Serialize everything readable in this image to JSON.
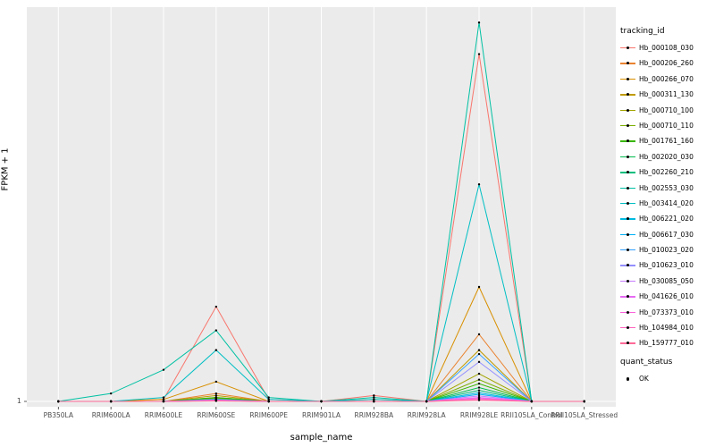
{
  "chart_data": {
    "type": "line",
    "title": "",
    "xlabel": "sample_name",
    "ylabel": "FPKM + 1",
    "ytick_labels": [
      "1"
    ],
    "ylim": [
      1,
      100
    ],
    "legend_title": "tracking_id",
    "legend_position": "right",
    "grid": "on",
    "panel_color": "#EBEBEB",
    "gridline_color": "#FFFFFF",
    "point_color": "#000000",
    "categories": [
      "PB350LA",
      "RRIM600LA",
      "RRIM600LE",
      "RRIM600SE",
      "RRIM600PE",
      "RRIM901LA",
      "RRIM928BA",
      "RRIM928LA",
      "RRIM928LE",
      "RRII105LA_Control",
      "RRII105LA_Stressed"
    ],
    "series": [
      {
        "name": "Hb_000108_030",
        "color": "#F8766D",
        "values": [
          1,
          1,
          1.5,
          25,
          1.5,
          1,
          2.5,
          1,
          89,
          1,
          1
        ]
      },
      {
        "name": "Hb_000206_260",
        "color": "#EA8331",
        "values": [
          1,
          1,
          1,
          3,
          1,
          1,
          1.5,
          1,
          18,
          1,
          1
        ]
      },
      {
        "name": "Hb_000266_070",
        "color": "#D89000",
        "values": [
          1,
          1,
          1.5,
          6,
          1,
          1,
          1,
          1,
          30,
          1,
          1
        ]
      },
      {
        "name": "Hb_000311_130",
        "color": "#C09B00",
        "values": [
          1,
          1,
          1,
          2.5,
          1,
          1,
          1,
          1,
          14,
          1,
          1
        ]
      },
      {
        "name": "Hb_000710_100",
        "color": "#A3A500",
        "values": [
          1,
          1,
          1,
          2,
          1,
          1,
          1,
          1,
          8,
          1,
          1
        ]
      },
      {
        "name": "Hb_000710_110",
        "color": "#7CAE00",
        "values": [
          1,
          1,
          1,
          1.8,
          1,
          1,
          1,
          1,
          6.5,
          1,
          1
        ]
      },
      {
        "name": "Hb_001761_160",
        "color": "#39B600",
        "values": [
          1,
          1,
          1,
          2,
          1,
          1,
          1,
          1,
          5.5,
          1,
          1
        ]
      },
      {
        "name": "Hb_002020_030",
        "color": "#00BB4E",
        "values": [
          1,
          1,
          1,
          1.6,
          1,
          1,
          1,
          1,
          4.5,
          1,
          1
        ]
      },
      {
        "name": "Hb_002260_210",
        "color": "#00BF7D",
        "values": [
          1,
          1,
          1,
          1.5,
          1,
          1,
          1,
          1,
          3.8,
          1,
          1
        ]
      },
      {
        "name": "Hb_002553_030",
        "color": "#00C1A3",
        "values": [
          1,
          3,
          9,
          19,
          2,
          1,
          2,
          1,
          97,
          1,
          1
        ]
      },
      {
        "name": "Hb_003414_020",
        "color": "#00BFC4",
        "values": [
          1,
          1,
          2,
          14,
          1.5,
          1,
          1.5,
          1,
          56,
          1,
          1
        ]
      },
      {
        "name": "Hb_006221_020",
        "color": "#00BAE0",
        "values": [
          1,
          1,
          1,
          1.4,
          1,
          1,
          1,
          1,
          3.2,
          1,
          1
        ]
      },
      {
        "name": "Hb_006617_030",
        "color": "#00B0F6",
        "values": [
          1,
          1,
          1,
          1.4,
          1,
          1,
          1,
          1,
          2.8,
          1,
          1
        ]
      },
      {
        "name": "Hb_010023_020",
        "color": "#35A2FF",
        "values": [
          1,
          1,
          1,
          1.5,
          1,
          1,
          1,
          1,
          13,
          1,
          1
        ]
      },
      {
        "name": "Hb_010623_010",
        "color": "#9590FF",
        "values": [
          1,
          1,
          1,
          1.4,
          1,
          1,
          1,
          1,
          11,
          1,
          1
        ]
      },
      {
        "name": "Hb_030085_050",
        "color": "#C77CFF",
        "values": [
          1,
          1,
          1,
          1.3,
          1,
          1,
          1,
          1,
          2.4,
          1,
          1
        ]
      },
      {
        "name": "Hb_041626_010",
        "color": "#E76BF3",
        "values": [
          1,
          1,
          1,
          1.3,
          1,
          1,
          1,
          1,
          2,
          1,
          1
        ]
      },
      {
        "name": "Hb_073373_010",
        "color": "#FA62DB",
        "values": [
          1,
          1,
          1,
          1.2,
          1,
          1,
          1,
          1,
          1.8,
          1,
          1
        ]
      },
      {
        "name": "Hb_104984_010",
        "color": "#FF62BC",
        "values": [
          1,
          1,
          1,
          1.2,
          1,
          1,
          1,
          1,
          1.5,
          1,
          1
        ]
      },
      {
        "name": "Hb_159777_010",
        "color": "#FF6A98",
        "values": [
          1,
          1,
          1,
          1.1,
          1,
          1,
          1,
          1,
          1.3,
          1,
          1
        ]
      }
    ],
    "quant_legend": {
      "title": "quant_status",
      "items": [
        "OK"
      ]
    }
  }
}
